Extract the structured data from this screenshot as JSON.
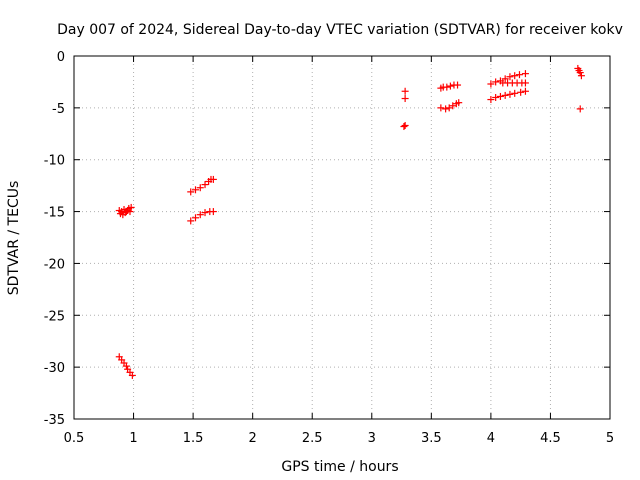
{
  "chart_data": {
    "type": "scatter",
    "title": "Day 007 of 2024, Sidereal Day-to-day VTEC variation (SDTVAR) for receiver kokv",
    "xlabel": "GPS time / hours",
    "ylabel": "SDTVAR / TECUs",
    "xlim": [
      0.5,
      5
    ],
    "ylim": [
      -35,
      0
    ],
    "x_ticks": [
      0.5,
      1,
      1.5,
      2,
      2.5,
      3,
      3.5,
      4,
      4.5,
      5
    ],
    "x_tick_labels": [
      "0.5",
      "1",
      "1.5",
      "2",
      "2.5",
      "3",
      "3.5",
      "4",
      "4.5",
      "5"
    ],
    "y_ticks": [
      0,
      -5,
      -10,
      -15,
      -20,
      -25,
      -30,
      -35
    ],
    "y_tick_labels": [
      "0",
      "-5",
      "-10",
      "-15",
      "-20",
      "-25",
      "-30",
      "-35"
    ],
    "grid": true,
    "marker": "plus",
    "color": "#ff0000",
    "series": [
      {
        "name": "SDTVAR",
        "points": [
          [
            0.88,
            -14.9
          ],
          [
            0.89,
            -15.2
          ],
          [
            0.9,
            -15.0
          ],
          [
            0.91,
            -15.3
          ],
          [
            0.92,
            -14.8
          ],
          [
            0.93,
            -15.1
          ],
          [
            0.94,
            -15.0
          ],
          [
            0.95,
            -14.9
          ],
          [
            0.96,
            -14.7
          ],
          [
            0.97,
            -15.0
          ],
          [
            0.98,
            -14.6
          ],
          [
            0.88,
            -29.0
          ],
          [
            0.9,
            -29.3
          ],
          [
            0.92,
            -29.6
          ],
          [
            0.94,
            -29.9
          ],
          [
            0.95,
            -30.2
          ],
          [
            0.97,
            -30.5
          ],
          [
            0.99,
            -30.8
          ],
          [
            1.48,
            -13.1
          ],
          [
            1.52,
            -12.9
          ],
          [
            1.56,
            -12.7
          ],
          [
            1.6,
            -12.4
          ],
          [
            1.63,
            -12.1
          ],
          [
            1.65,
            -11.9
          ],
          [
            1.67,
            -11.9
          ],
          [
            1.48,
            -15.9
          ],
          [
            1.52,
            -15.6
          ],
          [
            1.56,
            -15.3
          ],
          [
            1.6,
            -15.1
          ],
          [
            1.64,
            -15.0
          ],
          [
            1.67,
            -15.0
          ],
          [
            3.28,
            -3.4
          ],
          [
            3.28,
            -4.1
          ],
          [
            3.28,
            -6.7
          ],
          [
            3.27,
            -6.8
          ],
          [
            3.58,
            -3.1
          ],
          [
            3.6,
            -3.0
          ],
          [
            3.63,
            -3.0
          ],
          [
            3.66,
            -2.9
          ],
          [
            3.69,
            -2.8
          ],
          [
            3.72,
            -2.8
          ],
          [
            3.58,
            -5.0
          ],
          [
            3.62,
            -5.1
          ],
          [
            3.65,
            -5.0
          ],
          [
            3.68,
            -4.8
          ],
          [
            3.71,
            -4.6
          ],
          [
            3.73,
            -4.5
          ],
          [
            4.0,
            -2.7
          ],
          [
            4.04,
            -2.5
          ],
          [
            4.08,
            -2.4
          ],
          [
            4.12,
            -2.2
          ],
          [
            4.16,
            -2.0
          ],
          [
            4.2,
            -1.9
          ],
          [
            4.24,
            -1.8
          ],
          [
            4.29,
            -1.7
          ],
          [
            4.0,
            -4.2
          ],
          [
            4.04,
            -4.0
          ],
          [
            4.08,
            -3.9
          ],
          [
            4.12,
            -3.8
          ],
          [
            4.16,
            -3.7
          ],
          [
            4.2,
            -3.6
          ],
          [
            4.25,
            -3.5
          ],
          [
            4.29,
            -3.4
          ],
          [
            4.1,
            -2.6
          ],
          [
            4.14,
            -2.6
          ],
          [
            4.18,
            -2.6
          ],
          [
            4.22,
            -2.6
          ],
          [
            4.26,
            -2.6
          ],
          [
            4.29,
            -2.6
          ],
          [
            4.73,
            -1.2
          ],
          [
            4.74,
            -1.4
          ],
          [
            4.75,
            -1.6
          ],
          [
            4.76,
            -1.9
          ],
          [
            4.75,
            -5.1
          ]
        ]
      }
    ]
  }
}
